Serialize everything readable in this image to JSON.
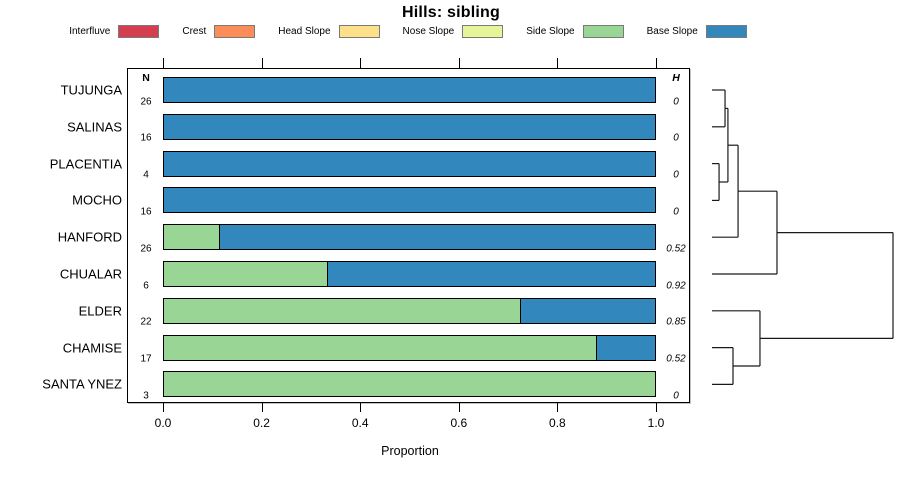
{
  "title": "Hills: sibling",
  "legend": {
    "items": [
      {
        "label": "Interfluve",
        "color": "#d53e4f"
      },
      {
        "label": "Crest",
        "color": "#fc8d59"
      },
      {
        "label": "Head Slope",
        "color": "#fee08b"
      },
      {
        "label": "Nose Slope",
        "color": "#e6f598"
      },
      {
        "label": "Side Slope",
        "color": "#99d594"
      },
      {
        "label": "Base Slope",
        "color": "#3288bd"
      }
    ]
  },
  "chart_data": {
    "type": "bar",
    "stacked": true,
    "orientation": "horizontal",
    "title": "Hills: sibling",
    "xlabel": "Proportion",
    "xlim": [
      0,
      1
    ],
    "x_ticks": [
      "0.0",
      "0.2",
      "0.4",
      "0.6",
      "0.8",
      "1.0"
    ],
    "n_header": "N",
    "h_header": "H",
    "series_names": [
      "Interfluve",
      "Crest",
      "Head Slope",
      "Nose Slope",
      "Side Slope",
      "Base Slope"
    ],
    "rows": [
      {
        "label": "TUJUNGA",
        "n": "26",
        "h": "0",
        "segments": [
          {
            "series": "Base Slope",
            "value": 1.0
          }
        ]
      },
      {
        "label": "SALINAS",
        "n": "16",
        "h": "0",
        "segments": [
          {
            "series": "Base Slope",
            "value": 1.0
          }
        ]
      },
      {
        "label": "PLACENTIA",
        "n": "4",
        "h": "0",
        "segments": [
          {
            "series": "Base Slope",
            "value": 1.0
          }
        ]
      },
      {
        "label": "MOCHO",
        "n": "16",
        "h": "0",
        "segments": [
          {
            "series": "Base Slope",
            "value": 1.0
          }
        ]
      },
      {
        "label": "HANFORD",
        "n": "26",
        "h": "0.52",
        "segments": [
          {
            "series": "Side Slope",
            "value": 0.115
          },
          {
            "series": "Base Slope",
            "value": 0.885
          }
        ]
      },
      {
        "label": "CHUALAR",
        "n": "6",
        "h": "0.92",
        "segments": [
          {
            "series": "Side Slope",
            "value": 0.333
          },
          {
            "series": "Base Slope",
            "value": 0.667
          }
        ]
      },
      {
        "label": "ELDER",
        "n": "22",
        "h": "0.85",
        "segments": [
          {
            "series": "Side Slope",
            "value": 0.727
          },
          {
            "series": "Base Slope",
            "value": 0.273
          }
        ]
      },
      {
        "label": "CHAMISE",
        "n": "17",
        "h": "0.52",
        "segments": [
          {
            "series": "Side Slope",
            "value": 0.882
          },
          {
            "series": "Base Slope",
            "value": 0.118
          }
        ]
      },
      {
        "label": "SANTA YNEZ",
        "n": "3",
        "h": "0",
        "segments": [
          {
            "series": "Side Slope",
            "value": 1.0
          }
        ]
      }
    ],
    "dendrogram": {
      "merges": [
        {
          "id": "m1",
          "a": "TUJUNGA",
          "b": "SALINAS",
          "height": 0.072
        },
        {
          "id": "m2",
          "a": "PLACENTIA",
          "b": "MOCHO",
          "height": 0.039
        },
        {
          "id": "m3",
          "a": "m1",
          "b": "m2",
          "height": 0.088
        },
        {
          "id": "m4",
          "a": "m3",
          "b": "HANFORD",
          "height": 0.144
        },
        {
          "id": "m5",
          "a": "m4",
          "b": "CHUALAR",
          "height": 0.359
        },
        {
          "id": "m6",
          "a": "CHAMISE",
          "b": "SANTA YNEZ",
          "height": 0.116
        },
        {
          "id": "m7",
          "a": "ELDER",
          "b": "m6",
          "height": 0.265
        },
        {
          "id": "m8",
          "a": "m5",
          "b": "m7",
          "height": 1.0
        }
      ]
    }
  }
}
